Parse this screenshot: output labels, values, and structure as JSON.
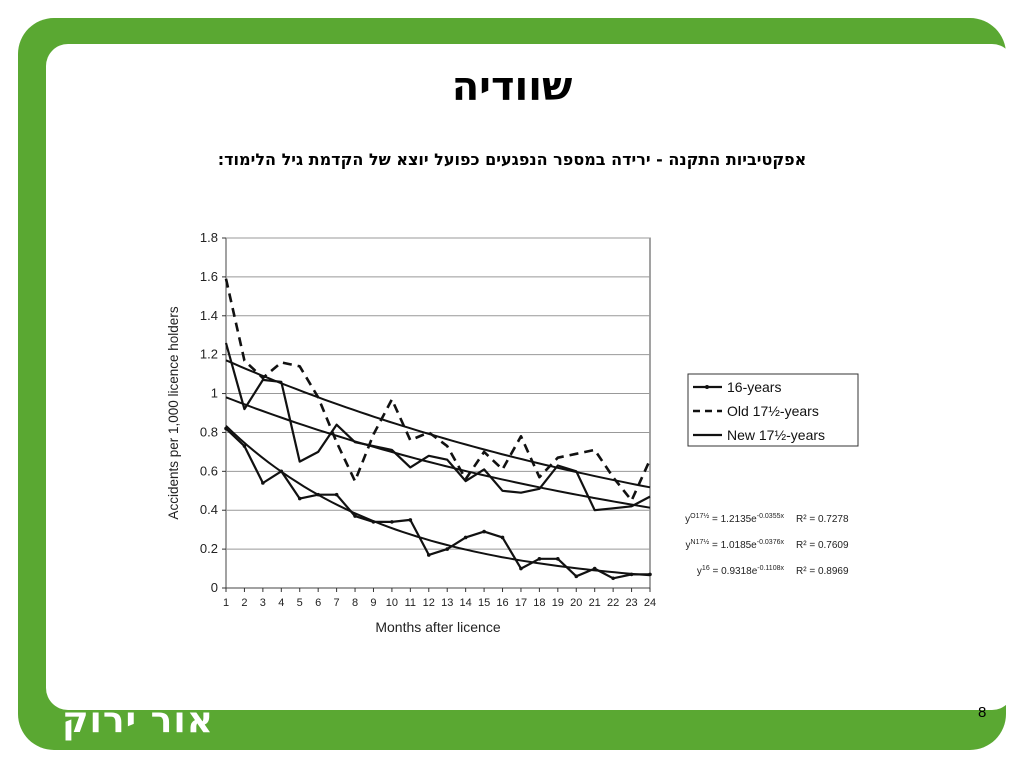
{
  "slide": {
    "title": "שוודיה",
    "subtitle": "אפקטיביות התקנה - ירידה במספר הנפגעים כפועל יוצא של הקדמת גיל הלימוד:",
    "logo_text": "אור ירוק",
    "page_number": "8",
    "accent_color": "#5aa832"
  },
  "chart_data": {
    "type": "line",
    "xlabel": "Months after licence",
    "ylabel": "Accidents per 1,000 licence holders",
    "x": [
      1,
      2,
      3,
      4,
      5,
      6,
      7,
      8,
      9,
      10,
      11,
      12,
      13,
      14,
      15,
      16,
      17,
      18,
      19,
      20,
      21,
      22,
      23,
      24
    ],
    "xlim": [
      1,
      24
    ],
    "ylim": [
      0,
      1.8
    ],
    "yticks": [
      "0",
      "0.2",
      "0.4",
      "0.6",
      "0.8",
      "1",
      "1.2",
      "1.4",
      "1.6",
      "1.8"
    ],
    "grid": "horizontal",
    "legend_position": "right",
    "series": [
      {
        "name": "16-years",
        "style": "solid-marker",
        "values": [
          0.82,
          0.73,
          0.54,
          0.6,
          0.46,
          0.48,
          0.48,
          0.37,
          0.34,
          0.34,
          0.35,
          0.17,
          0.2,
          0.26,
          0.29,
          0.26,
          0.1,
          0.15,
          0.15,
          0.06,
          0.1,
          0.05,
          0.07,
          0.07
        ]
      },
      {
        "name": "Old 17½-years",
        "style": "dashed",
        "values": [
          1.59,
          1.17,
          1.08,
          1.16,
          1.14,
          0.98,
          0.75,
          0.55,
          0.79,
          0.97,
          0.76,
          0.8,
          0.73,
          0.56,
          0.7,
          0.61,
          0.78,
          0.57,
          0.67,
          0.69,
          0.71,
          0.57,
          0.45,
          0.66
        ]
      },
      {
        "name": "New 17½-years",
        "style": "solid",
        "values": [
          1.26,
          0.92,
          1.07,
          1.06,
          0.65,
          0.7,
          0.84,
          0.75,
          0.73,
          0.71,
          0.62,
          0.68,
          0.66,
          0.55,
          0.61,
          0.5,
          0.49,
          0.51,
          0.63,
          0.6,
          0.4,
          0.41,
          0.42,
          0.47
        ]
      }
    ],
    "trendlines": [
      {
        "of": "Old 17½-years",
        "a": 1.2135,
        "b": -0.0355
      },
      {
        "of": "New 17½-years",
        "a": 1.0185,
        "b": -0.0376
      },
      {
        "of": "16-years",
        "a": 0.9318,
        "b": -0.1108
      }
    ],
    "equations": [
      {
        "lhs": "y",
        "sup": "O17½",
        "eq": " = 1.2135e",
        "exp": "-0.0355x",
        "r2": "R² = 0.7278"
      },
      {
        "lhs": "y",
        "sup": "N17½",
        "eq": " = 1.0185e",
        "exp": "-0.0376x",
        "r2": "R² = 0.7609"
      },
      {
        "lhs": "y",
        "sup": "16",
        "eq": " = 0.9318e",
        "exp": "-0.1108x",
        "r2": "R² = 0.8969"
      }
    ]
  }
}
